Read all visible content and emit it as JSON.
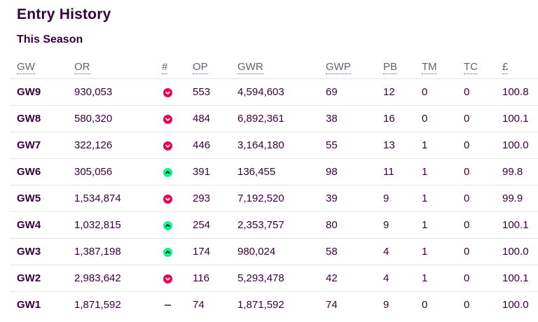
{
  "header": {
    "title": "Entry History",
    "subtitle": "This Season"
  },
  "columns": [
    "GW",
    "OR",
    "#",
    "OP",
    "GWR",
    "GWP",
    "PB",
    "TM",
    "TC",
    "£"
  ],
  "colors": {
    "primary": "#37003c",
    "down": "#e90052",
    "up": "#00ff87"
  },
  "rows": [
    {
      "gw": "GW9",
      "or": "930,053",
      "move": "down",
      "op": "553",
      "gwr": "4,594,603",
      "gwp": "69",
      "pb": "12",
      "tm": "0",
      "tc": "0",
      "value": "100.8"
    },
    {
      "gw": "GW8",
      "or": "580,320",
      "move": "down",
      "op": "484",
      "gwr": "6,892,361",
      "gwp": "38",
      "pb": "16",
      "tm": "0",
      "tc": "0",
      "value": "100.1"
    },
    {
      "gw": "GW7",
      "or": "322,126",
      "move": "down",
      "op": "446",
      "gwr": "3,164,180",
      "gwp": "55",
      "pb": "13",
      "tm": "1",
      "tc": "0",
      "value": "100.0"
    },
    {
      "gw": "GW6",
      "or": "305,056",
      "move": "up",
      "op": "391",
      "gwr": "136,455",
      "gwp": "98",
      "pb": "11",
      "tm": "1",
      "tc": "0",
      "value": "99.8"
    },
    {
      "gw": "GW5",
      "or": "1,534,874",
      "move": "down",
      "op": "293",
      "gwr": "7,192,520",
      "gwp": "39",
      "pb": "9",
      "tm": "1",
      "tc": "0",
      "value": "99.9"
    },
    {
      "gw": "GW4",
      "or": "1,032,815",
      "move": "up",
      "op": "254",
      "gwr": "2,353,757",
      "gwp": "80",
      "pb": "9",
      "tm": "1",
      "tc": "0",
      "value": "100.1"
    },
    {
      "gw": "GW3",
      "or": "1,387,198",
      "move": "up",
      "op": "174",
      "gwr": "980,024",
      "gwp": "58",
      "pb": "4",
      "tm": "1",
      "tc": "0",
      "value": "100.0"
    },
    {
      "gw": "GW2",
      "or": "2,983,642",
      "move": "down",
      "op": "116",
      "gwr": "5,293,478",
      "gwp": "42",
      "pb": "4",
      "tm": "1",
      "tc": "0",
      "value": "100.1"
    },
    {
      "gw": "GW1",
      "or": "1,871,592",
      "move": "none",
      "op": "74",
      "gwr": "1,871,592",
      "gwp": "74",
      "pb": "9",
      "tm": "0",
      "tc": "0",
      "value": "100.0"
    }
  ]
}
